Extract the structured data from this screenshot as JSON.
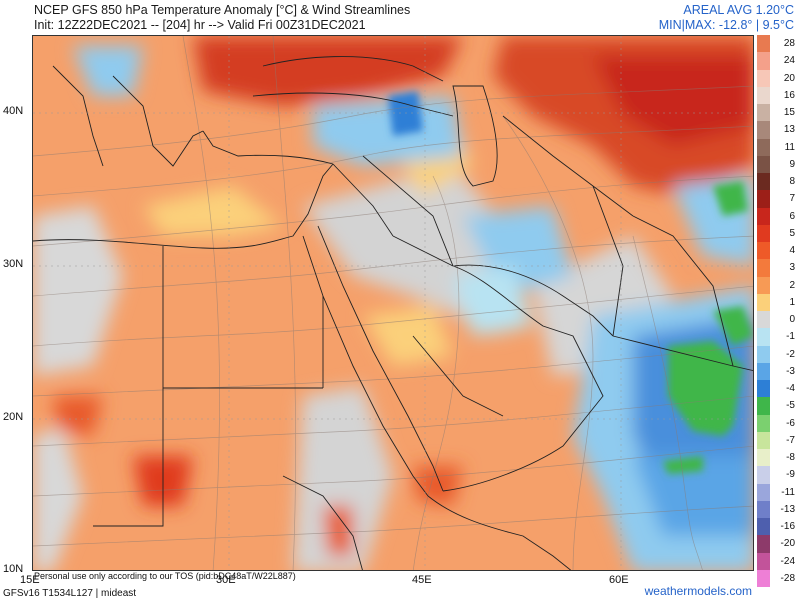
{
  "header": {
    "title": "NCEP GFS 850 hPa Temperature Anomaly [°C] & Wind Streamlines",
    "init_line": "Init: 12Z22DEC2021 -- [204] hr --> Valid Fri 00Z31DEC2021",
    "areal_avg": "AREAL AVG 1.20°C",
    "minmax": "MIN|MAX: -12.8° | 9.5°C"
  },
  "map": {
    "lat_labels": [
      "40N",
      "30N",
      "20N",
      "10N"
    ],
    "lon_labels": [
      "15E",
      "30E",
      "45E",
      "60E"
    ]
  },
  "footer": {
    "notice": "Personal use only according to our TOS (pid:bDC48aT/W22L887)",
    "model_line": "GFSv16 T1534L127 | mideast",
    "website": "weathermodels.com"
  },
  "legend": {
    "colors_note": "temperature anomaly scale",
    "entries": [
      {
        "label": "28",
        "color": "#e87a50"
      },
      {
        "label": "24",
        "color": "#f4a08a"
      },
      {
        "label": "20",
        "color": "#f7c7b7"
      },
      {
        "label": "16",
        "color": "#ead7cd"
      },
      {
        "label": "15",
        "color": "#c9b1a3"
      },
      {
        "label": "13",
        "color": "#a8887a"
      },
      {
        "label": "11",
        "color": "#8e6a5b"
      },
      {
        "label": "9",
        "color": "#7a5245"
      },
      {
        "label": "8",
        "color": "#6b2a20"
      },
      {
        "label": "7",
        "color": "#9c1f18"
      },
      {
        "label": "6",
        "color": "#c8261c"
      },
      {
        "label": "5",
        "color": "#e03a1f"
      },
      {
        "label": "4",
        "color": "#ee5a28"
      },
      {
        "label": "3",
        "color": "#f37a3c"
      },
      {
        "label": "2",
        "color": "#f79a55"
      },
      {
        "label": "1",
        "color": "#fbd07a"
      },
      {
        "label": "0",
        "color": "#d8d8d8"
      },
      {
        "label": "-1",
        "color": "#b8e3f2"
      },
      {
        "label": "-2",
        "color": "#8fcbef"
      },
      {
        "label": "-3",
        "color": "#5aa5e6"
      },
      {
        "label": "-4",
        "color": "#2d7fd6"
      },
      {
        "label": "-5",
        "color": "#3fb64a"
      },
      {
        "label": "-6",
        "color": "#7bd06f"
      },
      {
        "label": "-7",
        "color": "#c8e59c"
      },
      {
        "label": "-8",
        "color": "#e8efc9"
      },
      {
        "label": "-9",
        "color": "#c9cfe9"
      },
      {
        "label": "-11",
        "color": "#9aa6dc"
      },
      {
        "label": "-13",
        "color": "#6f7fc9"
      },
      {
        "label": "-16",
        "color": "#4e5fae"
      },
      {
        "label": "-20",
        "color": "#8d3a6a"
      },
      {
        "label": "-24",
        "color": "#c2539a"
      },
      {
        "label": "-28",
        "color": "#ee7fd6"
      }
    ]
  }
}
